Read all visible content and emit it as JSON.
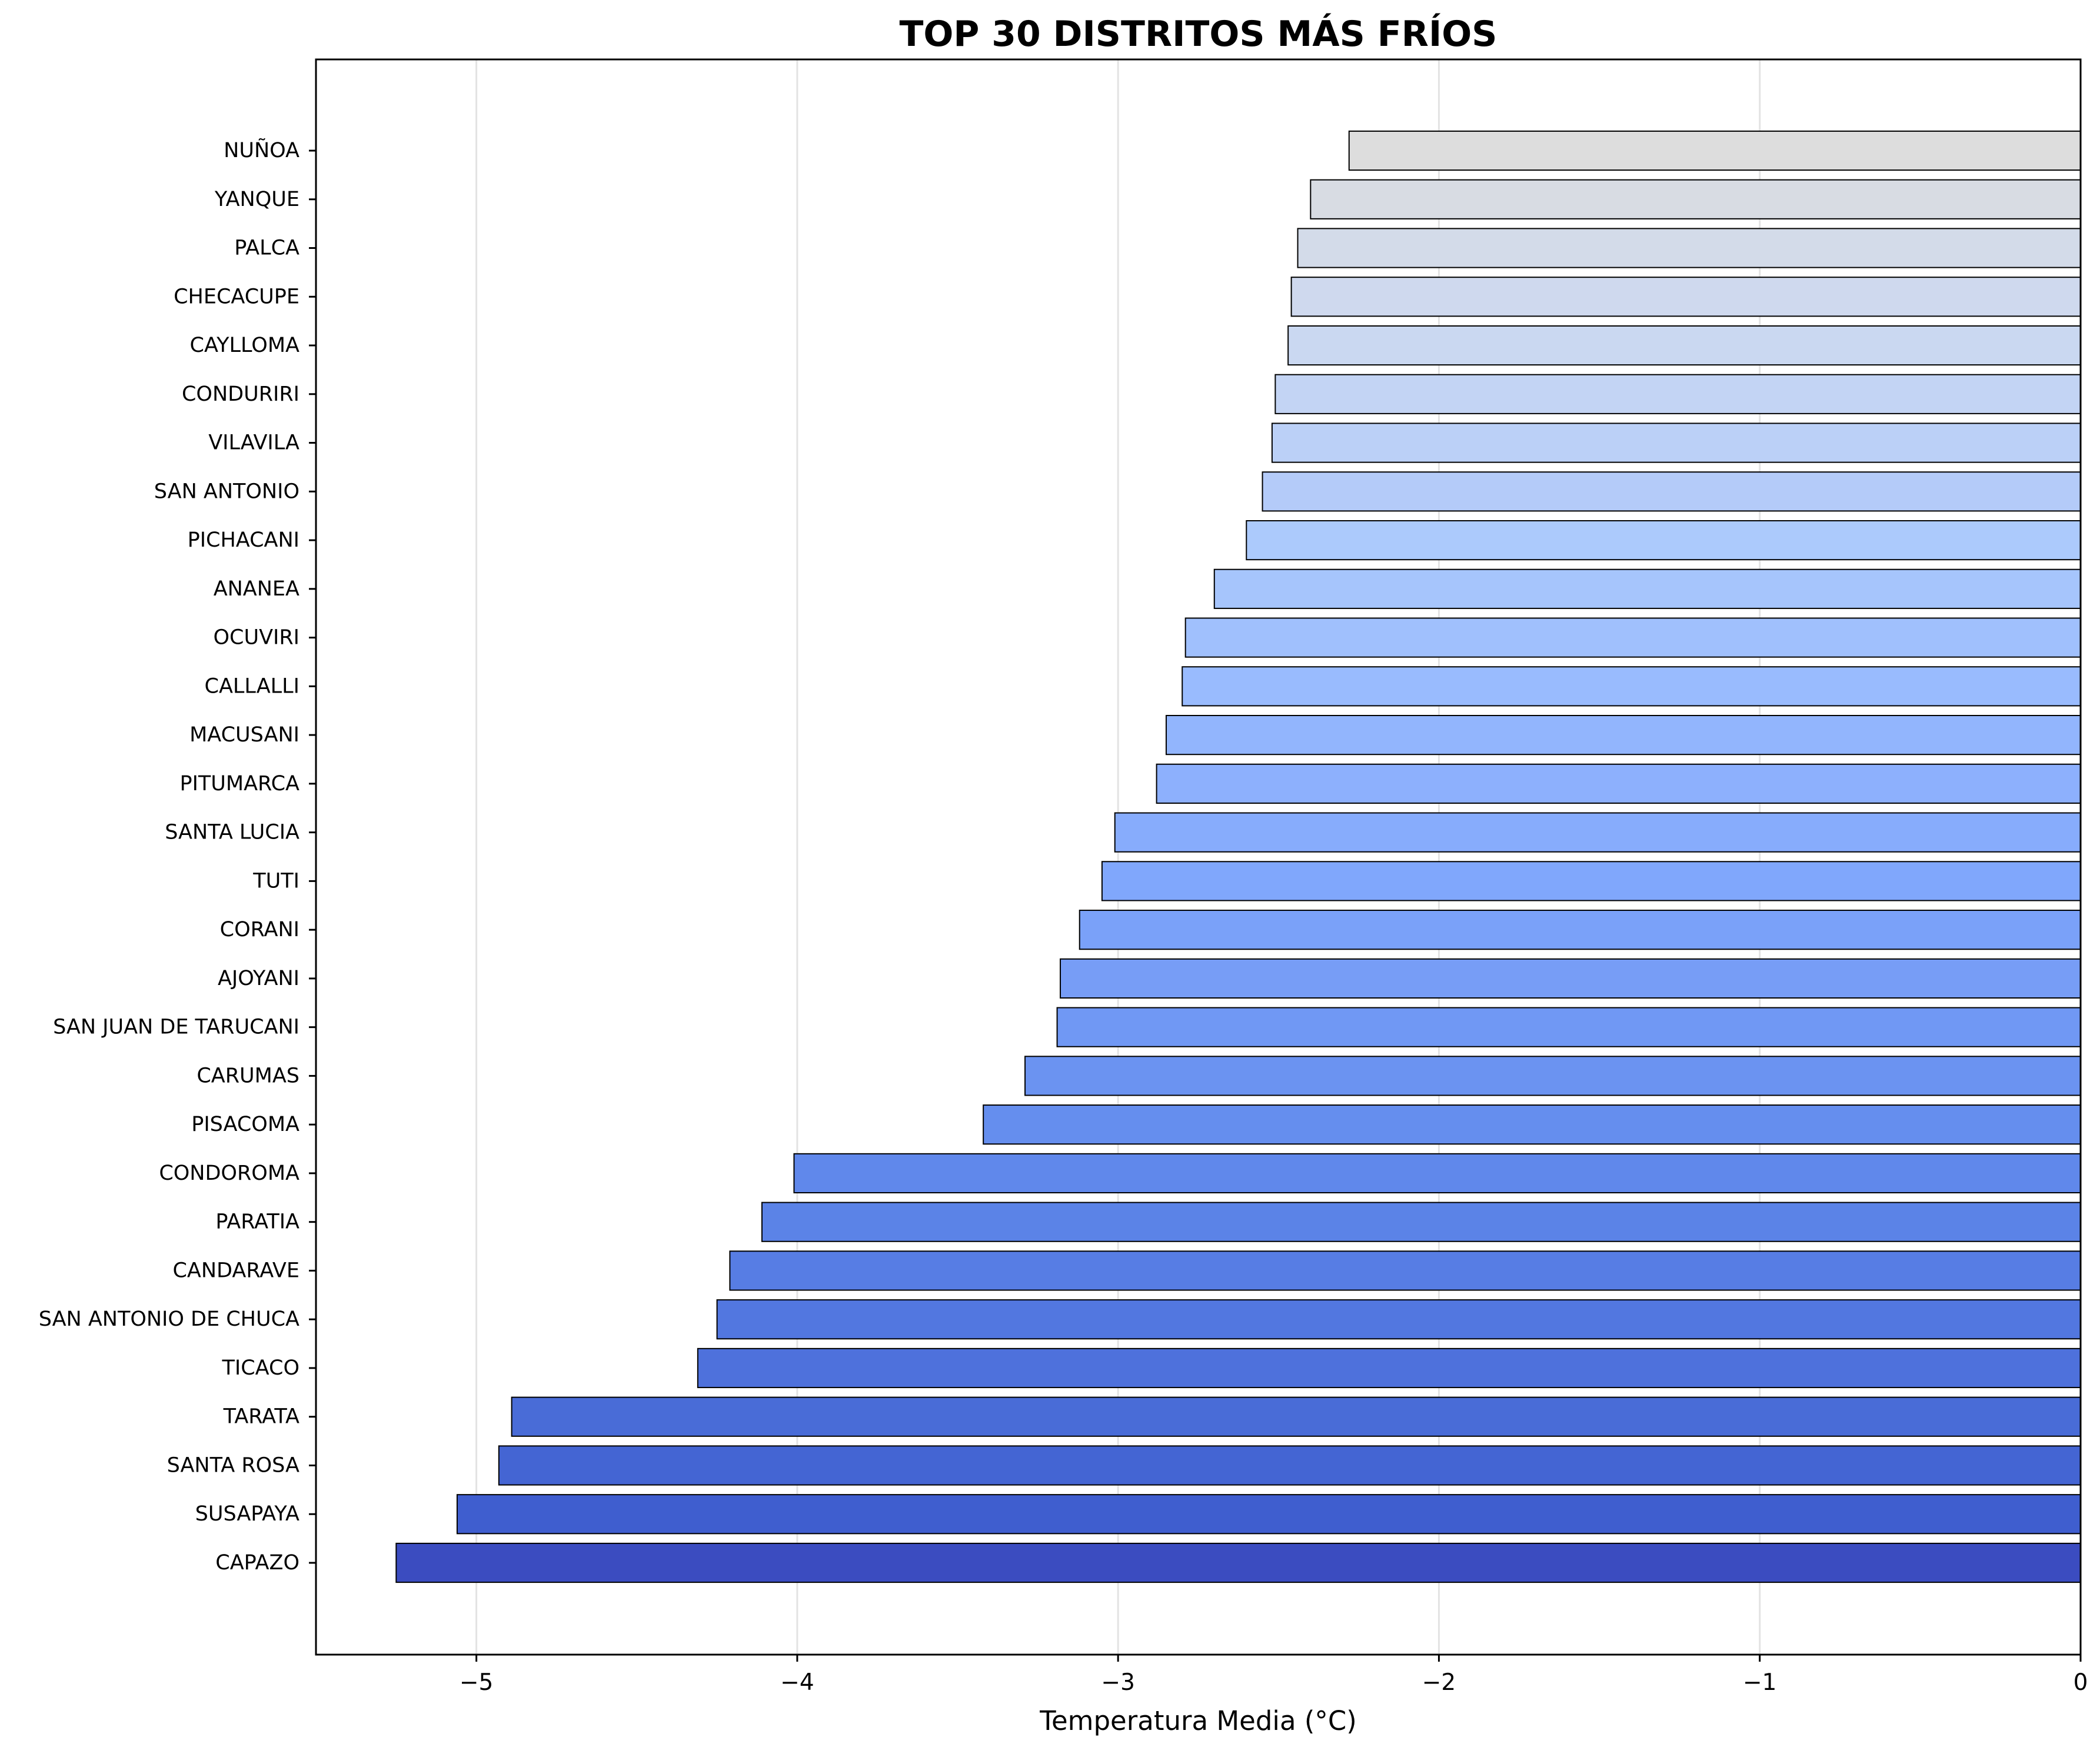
{
  "chart_data": {
    "type": "bar",
    "orientation": "horizontal",
    "title": "TOP 30 DISTRITOS MÁS FRÍOS",
    "xlabel": "Temperatura Media (°C)",
    "ylabel": "",
    "xlim": [
      -5.5,
      0
    ],
    "x_ticks": [
      -5,
      -4,
      -3,
      -2,
      -1,
      0
    ],
    "x_tick_labels": [
      "−5",
      "−4",
      "−3",
      "−2",
      "−1",
      "0"
    ],
    "grid": "vertical",
    "categories": [
      "NUÑOA",
      "YANQUE",
      "PALCA",
      "CHECACUPE",
      "CAYLLOMA",
      "CONDURIRI",
      "VILAVILA",
      "SAN ANTONIO",
      "PICHACANI",
      "ANANEA",
      "OCUVIRI",
      "CALLALLI",
      "MACUSANI",
      "PITUMARCA",
      "SANTA LUCIA",
      "TUTI",
      "CORANI",
      "AJOYANI",
      "SAN JUAN DE TARUCANI",
      "CARUMAS",
      "PISACOMA",
      "CONDOROMA",
      "PARATIA",
      "CANDARAVE",
      "SAN ANTONIO DE CHUCA",
      "TICACO",
      "TARATA",
      "SANTA ROSA",
      "SUSAPAYA",
      "CAPAZO"
    ],
    "values": [
      -2.28,
      -2.4,
      -2.44,
      -2.46,
      -2.47,
      -2.51,
      -2.52,
      -2.55,
      -2.6,
      -2.7,
      -2.79,
      -2.8,
      -2.85,
      -2.88,
      -3.01,
      -3.05,
      -3.12,
      -3.18,
      -3.19,
      -3.29,
      -3.42,
      -4.01,
      -4.11,
      -4.21,
      -4.25,
      -4.31,
      -4.89,
      -4.93,
      -5.06,
      -5.25
    ],
    "colors": [
      "#dddddd",
      "#d8dce3",
      "#d3dbe9",
      "#cfd9ee",
      "#cad8f1",
      "#c3d4f4",
      "#bbd0f7",
      "#b4cbf9",
      "#accafc",
      "#a6c5fc",
      "#a0c0fd",
      "#99bbfe",
      "#92b5fd",
      "#8db0fd",
      "#87acfc",
      "#80a7fc",
      "#7aa1f9",
      "#779df6",
      "#7098f4",
      "#6b93f1",
      "#658eee",
      "#6088eb",
      "#5b83e7",
      "#577de4",
      "#5277e0",
      "#4e71dc",
      "#496cd7",
      "#4465d3",
      "#3f5ecf",
      "#3b4cc0"
    ]
  }
}
